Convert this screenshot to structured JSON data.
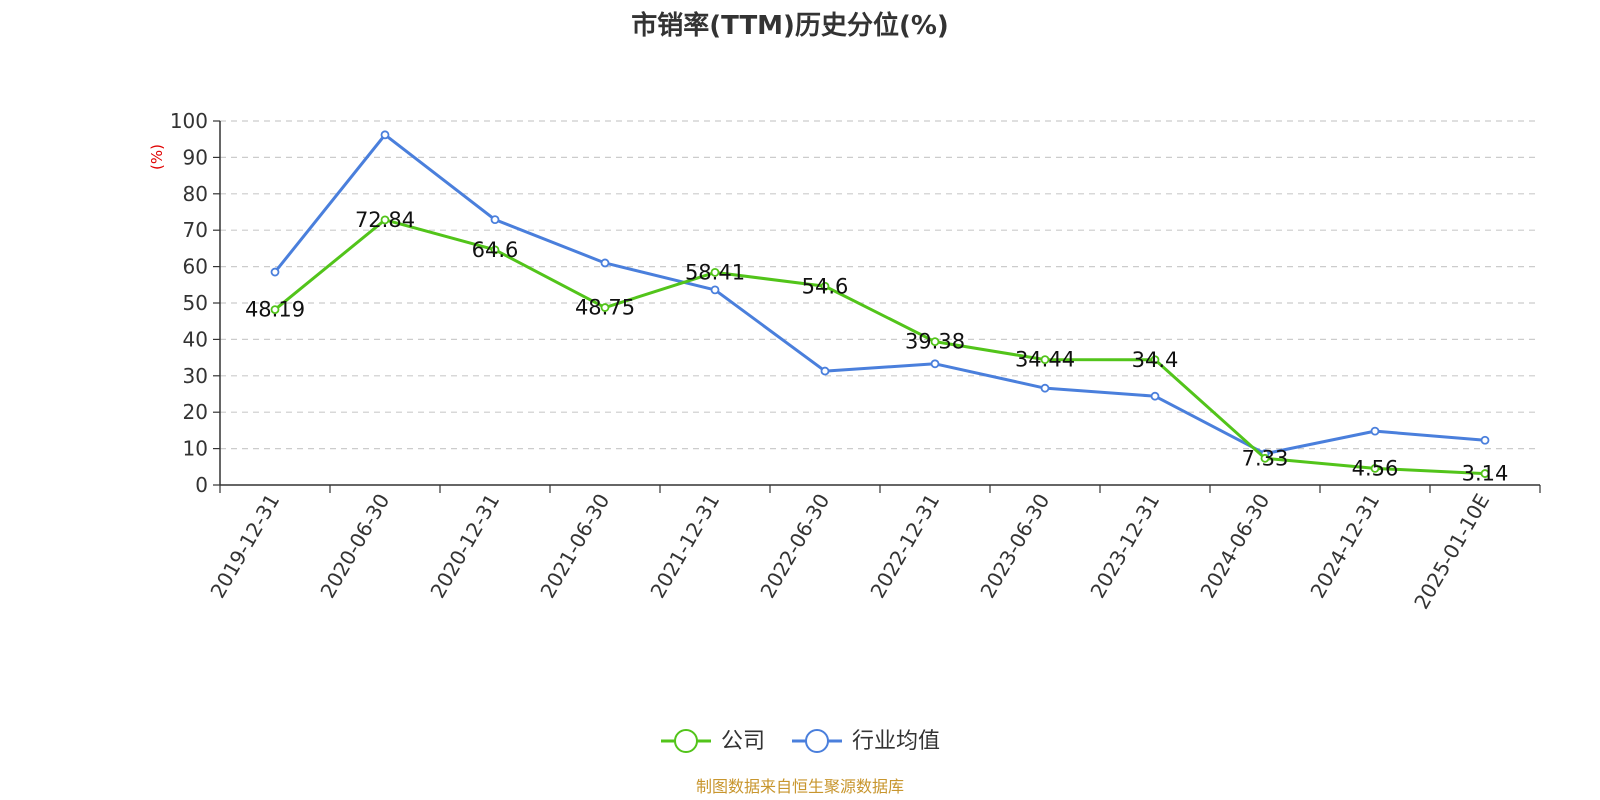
{
  "chart_data": {
    "type": "line",
    "title": "市销率(TTM)历史分位(%)",
    "ylabel": "(%)",
    "ylim": [
      0,
      100
    ],
    "yticks": [
      0,
      10,
      20,
      30,
      40,
      50,
      60,
      70,
      80,
      90,
      100
    ],
    "grid": true,
    "legend_position": "bottom-center",
    "categories": [
      "2019-12-31",
      "2020-06-30",
      "2020-12-31",
      "2021-06-30",
      "2021-12-31",
      "2022-06-30",
      "2022-12-31",
      "2023-06-30",
      "2023-12-31",
      "2024-06-30",
      "2024-12-31",
      "2025-01-10E"
    ],
    "series": [
      {
        "name": "公司",
        "color": "#52c41a",
        "values": [
          48.19,
          72.84,
          64.6,
          48.75,
          58.41,
          54.6,
          39.38,
          34.44,
          34.4,
          7.33,
          4.56,
          3.14
        ],
        "labels": [
          "48.19",
          "72.84",
          "64.6",
          "48.75",
          "58.41",
          "54.6",
          "39.38",
          "34.44",
          "34.4",
          "7.33",
          "4.56",
          "3.14"
        ]
      },
      {
        "name": "行业均值",
        "color": "#4a7fdc",
        "values": [
          58.5,
          96.2,
          72.9,
          61.0,
          53.6,
          31.3,
          33.3,
          26.6,
          24.4,
          8.6,
          14.8,
          12.3
        ]
      }
    ]
  },
  "source": "制图数据来自恒生聚源数据库"
}
